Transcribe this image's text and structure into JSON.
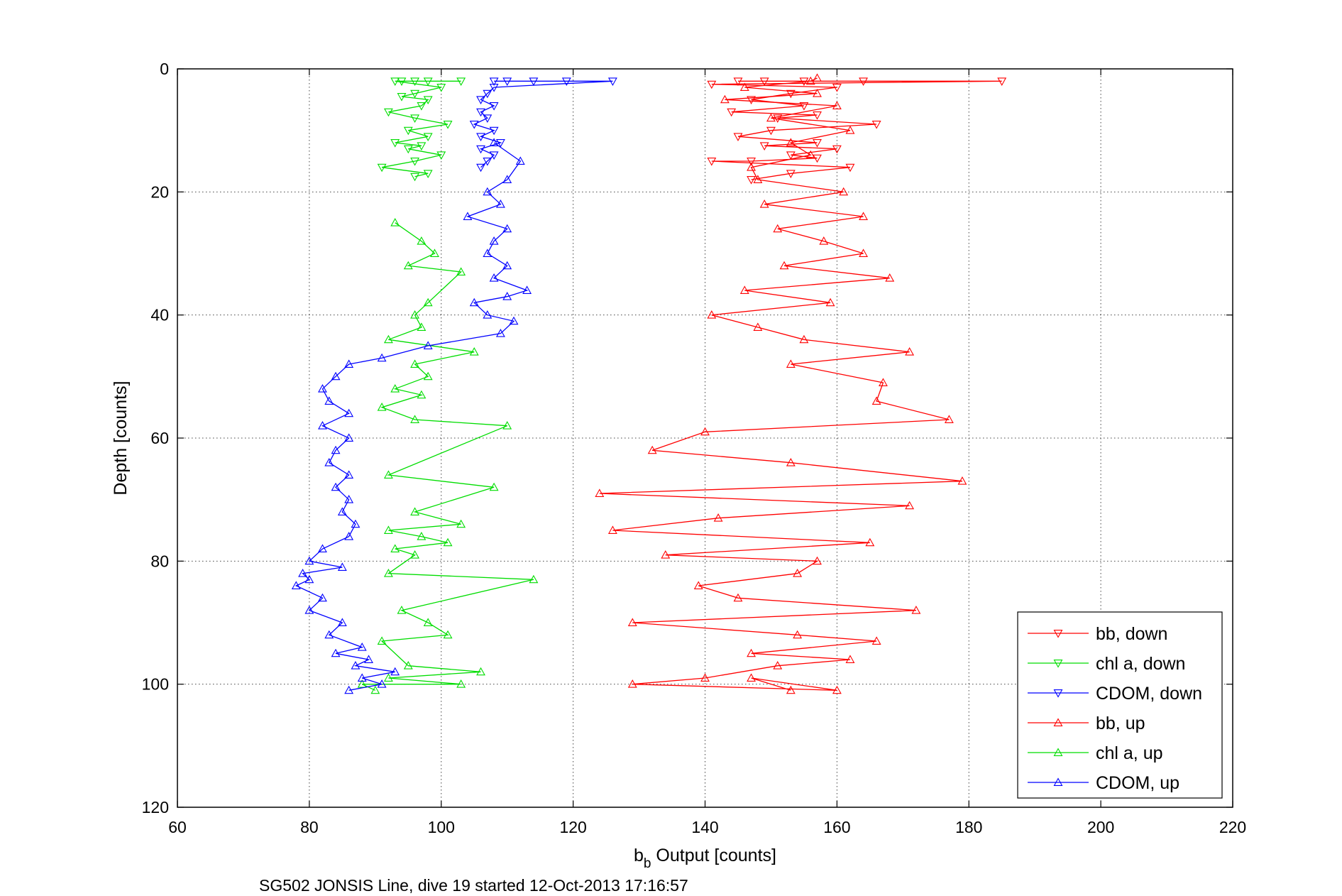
{
  "chart_data": {
    "type": "line",
    "ylabel": "Depth [counts]",
    "xlabel_main": "b",
    "xlabel_sub": "b",
    "xlabel_rest": " Output [counts]",
    "footer": "SG502 JONSIS Line, dive 19 started 12-Oct-2013 17:16:57",
    "xlim": [
      60,
      220
    ],
    "ylim": [
      0,
      120
    ],
    "y_reversed": true,
    "grid": true,
    "legend_position": "bottom-right",
    "xticks": [
      "60",
      "80",
      "100",
      "120",
      "140",
      "160",
      "180",
      "200",
      "220"
    ],
    "yticks": [
      "0",
      "20",
      "40",
      "60",
      "80",
      "100",
      "120"
    ],
    "series": [
      {
        "name": "bb, down",
        "color": "#ff0000",
        "marker": "triangle-down",
        "x": [
          145,
          155,
          149,
          164,
          185,
          141,
          160,
          153,
          147,
          155,
          144,
          157,
          151,
          166,
          150,
          145,
          157,
          149,
          160,
          153,
          157,
          147,
          141,
          162,
          153,
          147
        ],
        "y": [
          2,
          2,
          2,
          2,
          2,
          2.5,
          3,
          4,
          5,
          6,
          7,
          7.5,
          8,
          9,
          10,
          11,
          12,
          12.5,
          13,
          14,
          14.5,
          15,
          15,
          16,
          17,
          18
        ]
      },
      {
        "name": "chl a, down",
        "color": "#00dd00",
        "marker": "triangle-down",
        "x": [
          94,
          98,
          96,
          103,
          93,
          100,
          96,
          94,
          98,
          97,
          92,
          96,
          101,
          95,
          98,
          93,
          97,
          95,
          100,
          96,
          91,
          98,
          96
        ],
        "y": [
          2,
          2,
          2,
          2,
          2,
          3,
          4,
          4.5,
          5,
          6,
          7,
          8,
          9,
          10,
          11,
          12,
          12.5,
          13,
          14,
          15,
          16,
          17,
          17.5
        ]
      },
      {
        "name": "CDOM, down",
        "color": "#0000ff",
        "marker": "triangle-down",
        "x": [
          108,
          110,
          114,
          119,
          126,
          108,
          107,
          106,
          108,
          106,
          107,
          105,
          108,
          106,
          109,
          106,
          108,
          107,
          106
        ],
        "y": [
          2,
          2,
          2,
          2,
          2,
          3,
          4,
          5,
          6,
          7,
          8,
          9,
          10,
          11,
          12,
          13,
          14,
          15,
          16
        ]
      },
      {
        "name": "bb, up",
        "color": "#ff0000",
        "marker": "triangle-up",
        "x": [
          153,
          147,
          160,
          129,
          140,
          151,
          162,
          147,
          166,
          154,
          129,
          172,
          145,
          139,
          154,
          157,
          134,
          165,
          126,
          142,
          171,
          124,
          179,
          153,
          132,
          140,
          177,
          166,
          167,
          153,
          171,
          155,
          148,
          141,
          159,
          146,
          168,
          152,
          164,
          158,
          151,
          164,
          149,
          161,
          148,
          147,
          156,
          153,
          162,
          150,
          160,
          143,
          157,
          146,
          156,
          157
        ],
        "y": [
          101,
          99,
          101,
          100,
          99,
          97,
          96,
          95,
          93,
          92,
          90,
          88,
          86,
          84,
          82,
          80,
          79,
          77,
          75,
          73,
          71,
          69,
          67,
          64,
          62,
          59,
          57,
          54,
          51,
          48,
          46,
          44,
          42,
          40,
          38,
          36,
          34,
          32,
          30,
          28,
          26,
          24,
          22,
          20,
          18,
          16,
          14,
          12,
          10,
          8,
          6,
          5,
          4,
          3,
          2,
          1.5
        ]
      },
      {
        "name": "chl a, up",
        "color": "#00dd00",
        "marker": "triangle-up",
        "x": [
          90,
          88,
          103,
          92,
          106,
          95,
          91,
          101,
          98,
          94,
          114,
          92,
          96,
          93,
          101,
          97,
          92,
          103,
          96,
          108,
          92,
          110,
          96,
          91,
          97,
          93,
          98,
          96,
          105,
          92,
          97,
          96,
          98,
          103,
          95,
          99,
          97,
          93
        ],
        "y": [
          101,
          100,
          100,
          99,
          98,
          97,
          93,
          92,
          90,
          88,
          83,
          82,
          79,
          78,
          77,
          76,
          75,
          74,
          72,
          68,
          66,
          58,
          57,
          55,
          53,
          52,
          50,
          48,
          46,
          44,
          42,
          40,
          38,
          33,
          32,
          30,
          28,
          25
        ]
      },
      {
        "name": "CDOM, up",
        "color": "#0000ff",
        "marker": "triangle-up",
        "x": [
          86,
          91,
          88,
          93,
          87,
          89,
          84,
          88,
          83,
          85,
          80,
          82,
          78,
          80,
          79,
          85,
          80,
          82,
          86,
          87,
          85,
          86,
          84,
          86,
          83,
          84,
          86,
          82,
          86,
          83,
          82,
          84,
          86,
          91,
          98,
          109,
          111,
          107,
          105,
          110,
          113,
          108,
          110,
          107,
          108,
          110,
          104,
          109,
          107,
          110,
          112,
          108
        ],
        "y": [
          101,
          100,
          99,
          98,
          97,
          96,
          95,
          94,
          92,
          90,
          88,
          86,
          84,
          83,
          82,
          81,
          80,
          78,
          76,
          74,
          72,
          70,
          68,
          66,
          64,
          62,
          60,
          58,
          56,
          54,
          52,
          50,
          48,
          47,
          45,
          43,
          41,
          40,
          38,
          37,
          36,
          34,
          32,
          30,
          28,
          26,
          24,
          22,
          20,
          18,
          15,
          12
        ]
      }
    ]
  }
}
